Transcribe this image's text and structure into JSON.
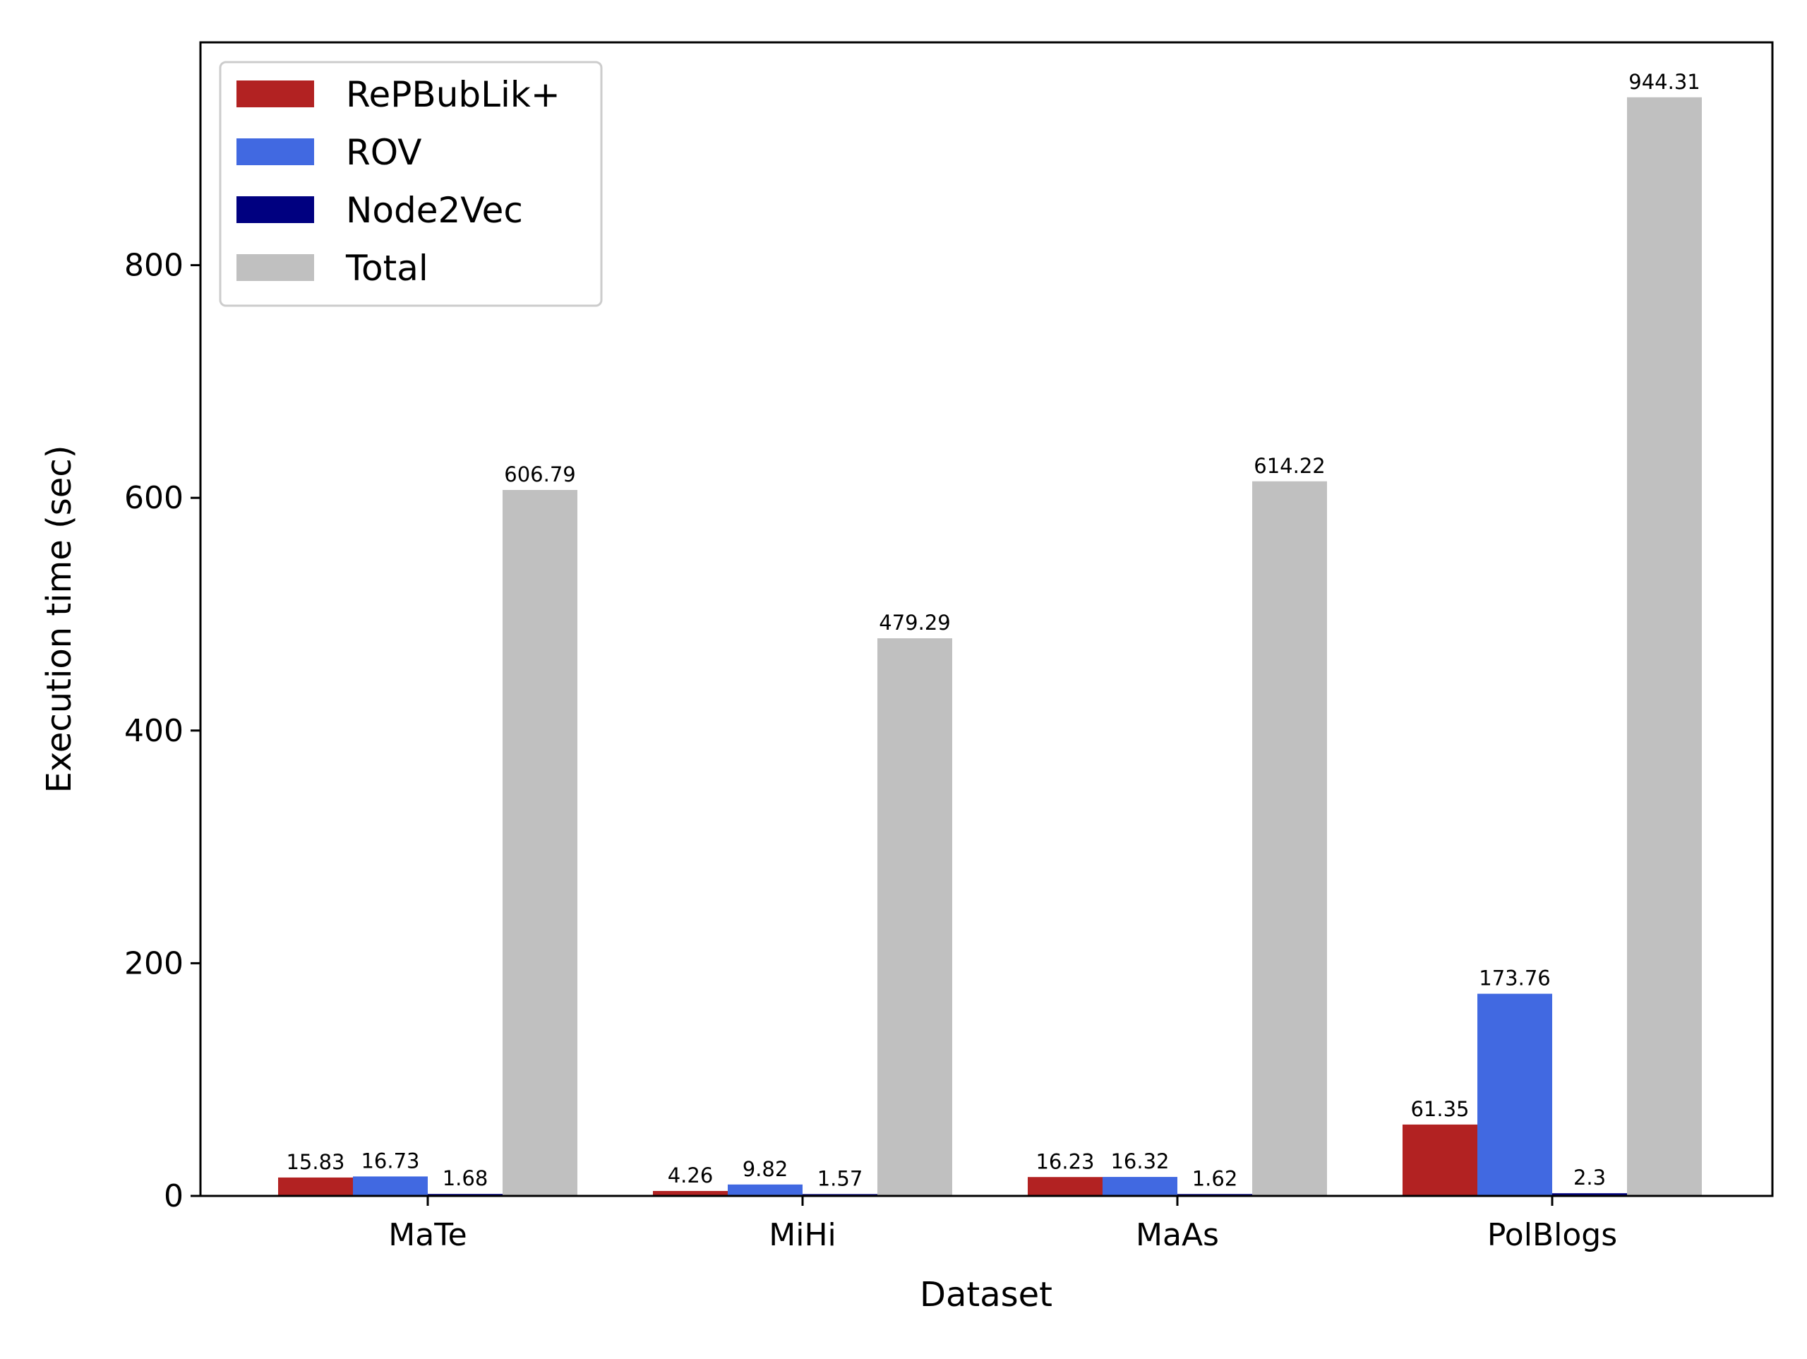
{
  "chart_data": {
    "type": "bar",
    "title": "",
    "xlabel": "Dataset",
    "ylabel": "Execution time (sec)",
    "categories": [
      "MaTe",
      "MiHi",
      "MaAs",
      "PolBlogs"
    ],
    "series": [
      {
        "name": "RePBubLik+",
        "color": "#b22222",
        "values": [
          15.83,
          4.26,
          16.23,
          61.35
        ],
        "labels": [
          "15.83",
          "4.26",
          "16.23",
          "61.35"
        ]
      },
      {
        "name": "ROV",
        "color": "#4169e1",
        "values": [
          16.73,
          9.82,
          16.32,
          173.76
        ],
        "labels": [
          "16.73",
          "9.82",
          "16.32",
          "173.76"
        ]
      },
      {
        "name": "Node2Vec",
        "color": "#000080",
        "values": [
          1.68,
          1.57,
          1.62,
          2.3
        ],
        "labels": [
          "1.68",
          "1.57",
          "1.62",
          "2.3"
        ]
      },
      {
        "name": "Total",
        "color": "#c0c0c0",
        "values": [
          606.79,
          479.29,
          614.22,
          944.31
        ],
        "labels": [
          "606.79",
          "479.29",
          "614.22",
          "944.31"
        ]
      }
    ],
    "yticks": [
      0,
      200,
      400,
      600,
      800
    ],
    "ytick_labels": [
      "0",
      "200",
      "400",
      "600",
      "800"
    ],
    "ylim": [
      0,
      991.5
    ],
    "grid": false,
    "legend_position": "upper-left"
  }
}
